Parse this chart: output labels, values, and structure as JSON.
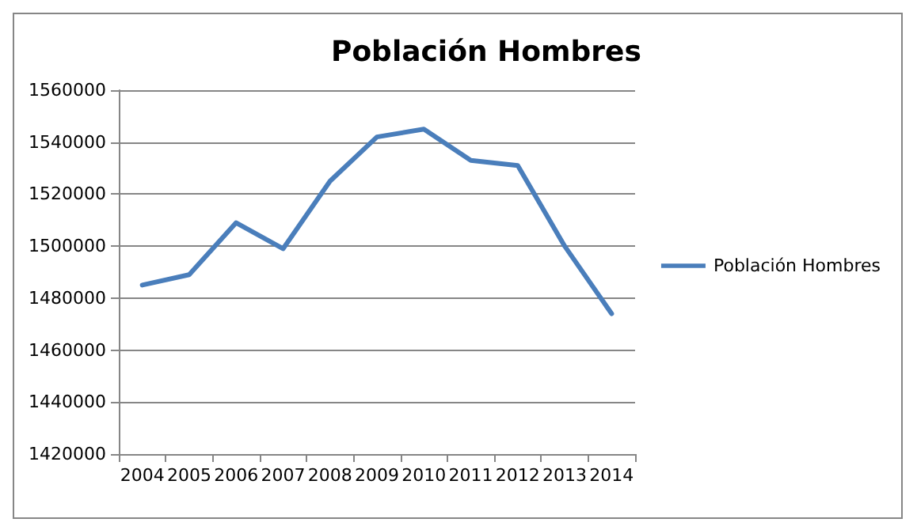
{
  "chart_data": {
    "type": "line",
    "title": "Población Hombres",
    "categories": [
      "2004",
      "2005",
      "2006",
      "2007",
      "2008",
      "2009",
      "2010",
      "2011",
      "2012",
      "2013",
      "2014"
    ],
    "series": [
      {
        "name": "Población Hombres",
        "color": "#4a7ebb",
        "values": [
          1485000,
          1489000,
          1509000,
          1499000,
          1525000,
          1542000,
          1545000,
          1533000,
          1531000,
          1500000,
          1474000
        ]
      }
    ],
    "ylim": [
      1420000,
      1560000
    ],
    "yticks": [
      1420000,
      1440000,
      1460000,
      1480000,
      1500000,
      1520000,
      1540000,
      1560000
    ],
    "grid": "y",
    "legend": "right",
    "marker": "none",
    "line_style": "solid"
  }
}
